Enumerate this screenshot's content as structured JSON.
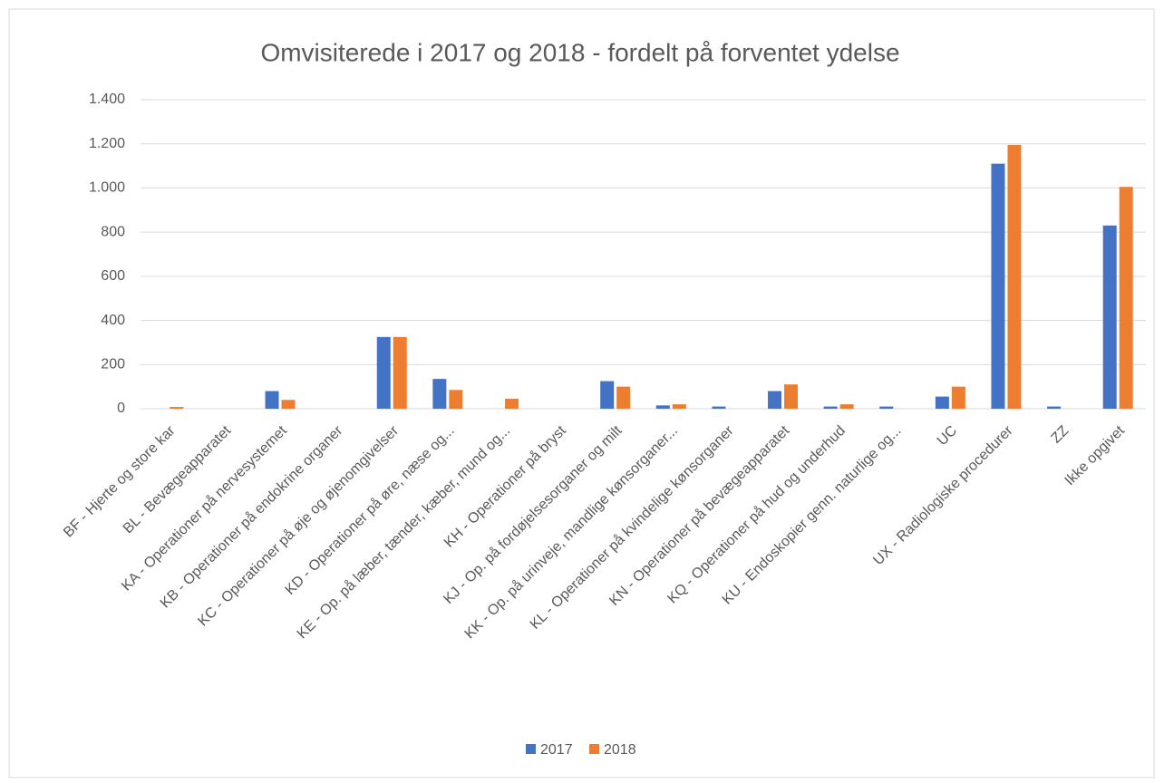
{
  "chart_data": {
    "type": "bar",
    "title": "Omvisiterede i 2017 og 2018 - fordelt på forventet ydelse",
    "categories": [
      "BF - Hjerte og store kar",
      "BL - Bevægeapparatet",
      "KA - Operationer på nervesystemet",
      "KB - Operationer på endokrine organer",
      "KC - Operationer på øje og øjenomgivelser",
      "KD - Operationer på øre, næse og...",
      "KE - Op. på læber, tænder, kæber, mund og...",
      "KH - Operationer på bryst",
      "KJ - Op. på fordøjelsesorganer og milt",
      "KK - Op. på urinveje, mandlige kønsorganer...",
      "KL - Operationer på kvindelige kønsorganer",
      "KN - Operationer på bevægeapparatet",
      "KQ - Operationer på hud og underhud",
      "KU - Endoskopier genn. naturlige og...",
      "UC",
      "UX - Radiologiske procedurer",
      "ZZ",
      "Ikke opgivet"
    ],
    "series": [
      {
        "name": "2017",
        "color": "#4472c4",
        "values": [
          0,
          0,
          80,
          0,
          325,
          135,
          0,
          0,
          125,
          15,
          10,
          80,
          10,
          10,
          55,
          1110,
          10,
          830
        ]
      },
      {
        "name": "2018",
        "color": "#ed7d31",
        "values": [
          8,
          0,
          40,
          0,
          325,
          85,
          45,
          0,
          100,
          20,
          0,
          110,
          20,
          0,
          100,
          1195,
          0,
          1005
        ]
      }
    ],
    "ylim": [
      0,
      1400
    ],
    "yticks": [
      0,
      200,
      400,
      600,
      800,
      {
        "value": 1000,
        "label": "1.000"
      },
      {
        "value": 1200,
        "label": "1.200"
      },
      {
        "value": 1400,
        "label": "1.400"
      }
    ],
    "grid": true,
    "legend": "bottom"
  }
}
